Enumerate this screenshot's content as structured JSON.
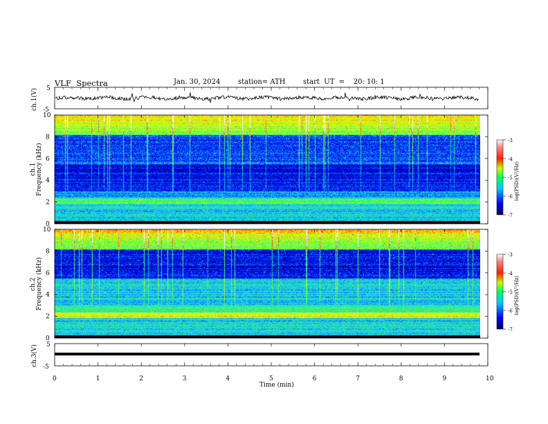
{
  "header": {
    "title": "VLF  Spectra",
    "date": "Jan. 30, 2024",
    "station": "station= ATH",
    "start": "start  UT  =    20: 10: 1"
  },
  "colors": {
    "spectrogram_scale": [
      "#00007a",
      "#0000e6",
      "#0a55ff",
      "#18c8ff",
      "#28e8a0",
      "#58ff40",
      "#c8ff20",
      "#ffe000",
      "#ff3000",
      "#ff8080",
      "#ffffff"
    ]
  },
  "chart_data": [
    {
      "type": "line",
      "name": "ch1-waveform",
      "ylabel": "ch.1(V)",
      "yticks": [
        "5",
        "-5"
      ],
      "ylim": [
        -5,
        5
      ],
      "xlim": [
        0,
        10
      ],
      "baseline": 0,
      "note_visible_extent_min": 9.8
    },
    {
      "type": "heatmap",
      "name": "ch1-spectrogram",
      "ylabel": "Frequency (kHz)",
      "channel_label": "ch.1",
      "yticks": [
        "0",
        "2",
        "4",
        "6",
        "8",
        "10"
      ],
      "ylim": [
        0,
        10
      ],
      "xlim": [
        0,
        9.8
      ],
      "colorbar": {
        "label": "log(PSD)(V²/Hz)",
        "ticks": [
          "-3",
          "-4",
          "-5",
          "-6",
          "-7"
        ],
        "range": [
          -7,
          -3
        ]
      }
    },
    {
      "type": "heatmap",
      "name": "ch2-spectrogram",
      "ylabel": "Frequency (kHz)",
      "channel_label": "ch.2",
      "yticks": [
        "0",
        "2",
        "4",
        "6",
        "8",
        "10"
      ],
      "ylim": [
        0,
        10
      ],
      "xlim": [
        0,
        9.8
      ],
      "colorbar": {
        "label": "log(PSD)(V²/Hz)",
        "ticks": [
          "-3",
          "-4",
          "-5",
          "-6",
          "-7"
        ],
        "range": [
          -7,
          -3
        ]
      }
    },
    {
      "type": "line",
      "name": "ch3-waveform",
      "ylabel": "ch.3(V)",
      "yticks": [
        "5",
        "-5"
      ],
      "ylim": [
        -5,
        5
      ],
      "xlim": [
        0,
        10
      ],
      "baseline": 0
    }
  ],
  "xaxis": {
    "label": "Time  (min)",
    "ticks": [
      "0",
      "1",
      "2",
      "3",
      "4",
      "5",
      "6",
      "7",
      "8",
      "9",
      "10"
    ]
  }
}
